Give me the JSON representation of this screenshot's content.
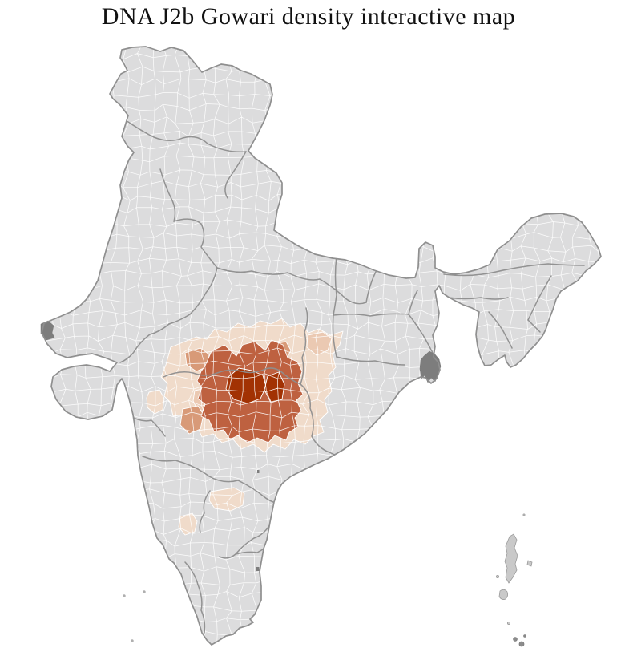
{
  "title": "DNA J2b Gowari density interactive map",
  "map": {
    "region_label": "india-districts-choropleth",
    "colors": {
      "background": "#ffffff",
      "land": "#dcdcdd",
      "district_border": "#ffffff",
      "state_border": "#8d8d8d",
      "coast_border": "#8f8f8f",
      "delta_marsh": "#7d7d7d",
      "island": "#c9c9c9",
      "island_dark": "#8c8c8c"
    },
    "density_levels": [
      {
        "level": "none",
        "color": "#dcdcdd"
      },
      {
        "level": "very-low",
        "color": "#f0dbca"
      },
      {
        "level": "low",
        "color": "#ebc9b2"
      },
      {
        "level": "medium",
        "color": "#d89a78"
      },
      {
        "level": "high",
        "color": "#be6140"
      },
      {
        "level": "highest",
        "color": "#a23203"
      }
    ]
  }
}
